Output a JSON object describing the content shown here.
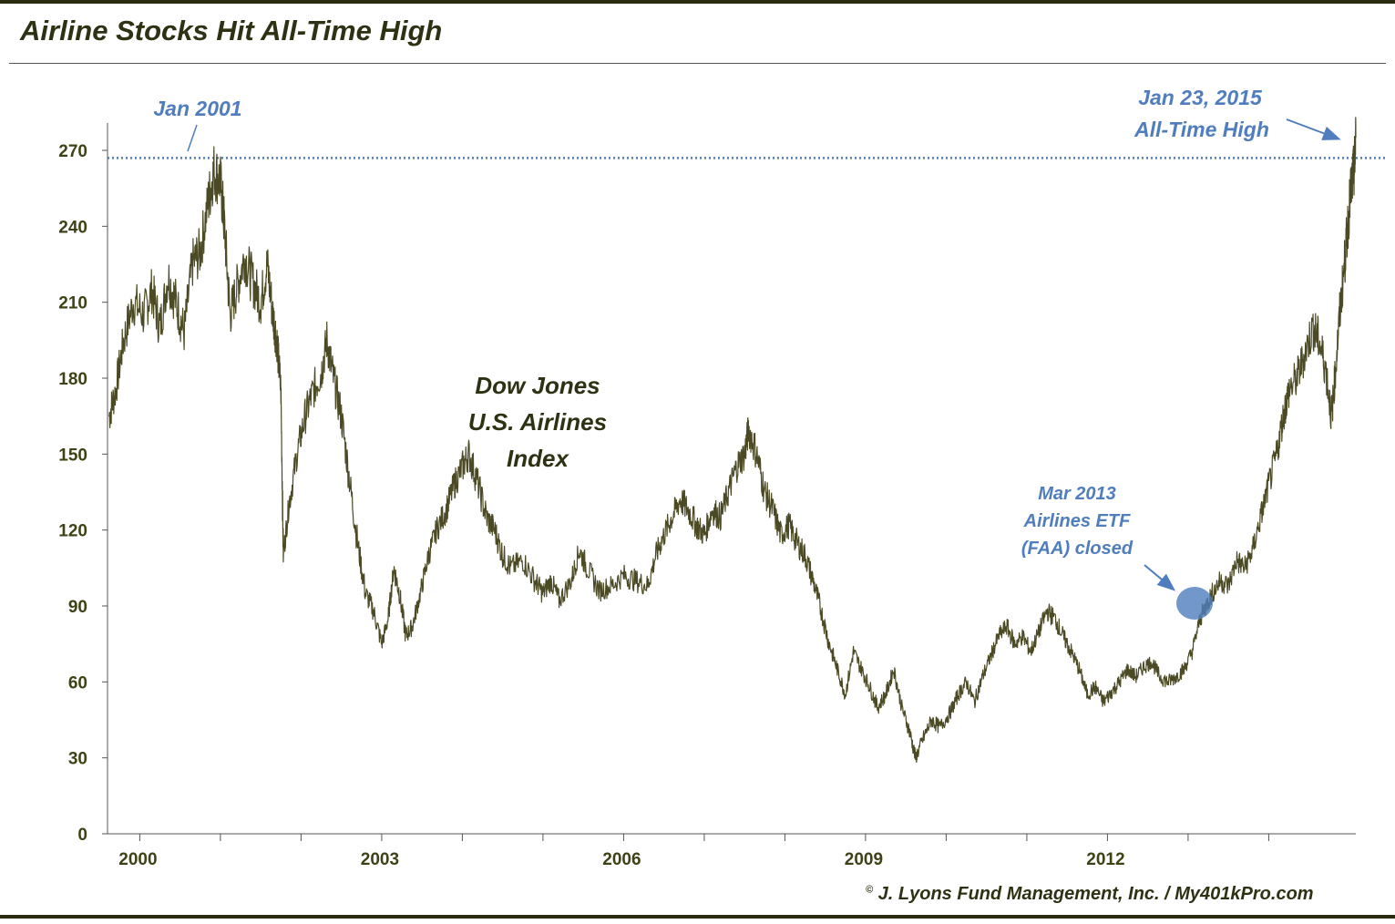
{
  "title": "Airline Stocks Hit All-Time High",
  "footer": "J. Lyons Fund Management, Inc. / My401kPro.com",
  "footer_symbol": "©",
  "chart_data": {
    "type": "line",
    "series_label": [
      "Dow Jones",
      "U.S. Airlines",
      "Index"
    ],
    "x_range": [
      1999.6,
      2015.08
    ],
    "ylim": [
      0,
      280
    ],
    "y_ticks": [
      0,
      30,
      60,
      90,
      120,
      150,
      180,
      210,
      240,
      270
    ],
    "x_ticks": [
      {
        "x": 2000,
        "label": "2000"
      },
      {
        "x": 2003,
        "label": "2003"
      },
      {
        "x": 2006,
        "label": "2006"
      },
      {
        "x": 2009,
        "label": "2009"
      },
      {
        "x": 2012,
        "label": "2012"
      }
    ],
    "x_minor_ticks": [
      2001,
      2002,
      2004,
      2005,
      2007,
      2008,
      2010,
      2011,
      2013,
      2014
    ],
    "reference_line": {
      "y": 267,
      "style": "dotted",
      "color": "#4f7dbd"
    },
    "series": [
      {
        "color": "#4b4a24",
        "points": [
          [
            1999.62,
            165
          ],
          [
            1999.7,
            175
          ],
          [
            1999.8,
            195
          ],
          [
            1999.92,
            210
          ],
          [
            2000.05,
            205
          ],
          [
            2000.15,
            215
          ],
          [
            2000.25,
            200
          ],
          [
            2000.35,
            220
          ],
          [
            2000.45,
            210
          ],
          [
            2000.55,
            198
          ],
          [
            2000.65,
            225
          ],
          [
            2000.75,
            230
          ],
          [
            2000.85,
            250
          ],
          [
            2000.92,
            262
          ],
          [
            2001.0,
            258
          ],
          [
            2001.05,
            240
          ],
          [
            2001.12,
            205
          ],
          [
            2001.2,
            215
          ],
          [
            2001.3,
            228
          ],
          [
            2001.4,
            218
          ],
          [
            2001.5,
            210
          ],
          [
            2001.58,
            225
          ],
          [
            2001.65,
            205
          ],
          [
            2001.7,
            195
          ],
          [
            2001.75,
            175
          ],
          [
            2001.78,
            110
          ],
          [
            2001.85,
            130
          ],
          [
            2001.95,
            150
          ],
          [
            2002.05,
            165
          ],
          [
            2002.15,
            175
          ],
          [
            2002.25,
            182
          ],
          [
            2002.32,
            195
          ],
          [
            2002.4,
            180
          ],
          [
            2002.5,
            165
          ],
          [
            2002.6,
            140
          ],
          [
            2002.7,
            115
          ],
          [
            2002.8,
            95
          ],
          [
            2002.9,
            88
          ],
          [
            2003.0,
            75
          ],
          [
            2003.08,
            85
          ],
          [
            2003.15,
            105
          ],
          [
            2003.22,
            95
          ],
          [
            2003.3,
            78
          ],
          [
            2003.38,
            82
          ],
          [
            2003.48,
            95
          ],
          [
            2003.58,
            110
          ],
          [
            2003.68,
            120
          ],
          [
            2003.8,
            128
          ],
          [
            2003.9,
            138
          ],
          [
            2004.0,
            145
          ],
          [
            2004.08,
            150
          ],
          [
            2004.18,
            140
          ],
          [
            2004.3,
            125
          ],
          [
            2004.4,
            120
          ],
          [
            2004.5,
            110
          ],
          [
            2004.6,
            105
          ],
          [
            2004.75,
            108
          ],
          [
            2004.9,
            100
          ],
          [
            2005.0,
            95
          ],
          [
            2005.1,
            100
          ],
          [
            2005.2,
            92
          ],
          [
            2005.35,
            100
          ],
          [
            2005.45,
            112
          ],
          [
            2005.55,
            105
          ],
          [
            2005.7,
            96
          ],
          [
            2005.85,
            98
          ],
          [
            2006.0,
            102
          ],
          [
            2006.15,
            100
          ],
          [
            2006.3,
            98
          ],
          [
            2006.4,
            110
          ],
          [
            2006.5,
            118
          ],
          [
            2006.6,
            125
          ],
          [
            2006.7,
            132
          ],
          [
            2006.8,
            128
          ],
          [
            2006.9,
            122
          ],
          [
            2007.0,
            118
          ],
          [
            2007.1,
            128
          ],
          [
            2007.2,
            125
          ],
          [
            2007.3,
            135
          ],
          [
            2007.4,
            145
          ],
          [
            2007.5,
            150
          ],
          [
            2007.55,
            160
          ],
          [
            2007.65,
            150
          ],
          [
            2007.75,
            135
          ],
          [
            2007.85,
            128
          ],
          [
            2007.95,
            118
          ],
          [
            2008.05,
            122
          ],
          [
            2008.15,
            115
          ],
          [
            2008.25,
            110
          ],
          [
            2008.35,
            100
          ],
          [
            2008.45,
            88
          ],
          [
            2008.55,
            75
          ],
          [
            2008.65,
            65
          ],
          [
            2008.75,
            55
          ],
          [
            2008.85,
            72
          ],
          [
            2008.95,
            65
          ],
          [
            2009.05,
            58
          ],
          [
            2009.15,
            50
          ],
          [
            2009.25,
            55
          ],
          [
            2009.35,
            65
          ],
          [
            2009.45,
            50
          ],
          [
            2009.55,
            40
          ],
          [
            2009.62,
            30
          ],
          [
            2009.72,
            38
          ],
          [
            2009.82,
            45
          ],
          [
            2009.92,
            42
          ],
          [
            2010.05,
            48
          ],
          [
            2010.15,
            55
          ],
          [
            2010.25,
            60
          ],
          [
            2010.35,
            52
          ],
          [
            2010.45,
            62
          ],
          [
            2010.55,
            70
          ],
          [
            2010.65,
            78
          ],
          [
            2010.75,
            82
          ],
          [
            2010.85,
            75
          ],
          [
            2010.95,
            78
          ],
          [
            2011.05,
            72
          ],
          [
            2011.15,
            80
          ],
          [
            2011.25,
            88
          ],
          [
            2011.35,
            85
          ],
          [
            2011.45,
            78
          ],
          [
            2011.55,
            72
          ],
          [
            2011.65,
            65
          ],
          [
            2011.75,
            55
          ],
          [
            2011.85,
            58
          ],
          [
            2011.95,
            52
          ],
          [
            2012.05,
            56
          ],
          [
            2012.15,
            60
          ],
          [
            2012.25,
            65
          ],
          [
            2012.35,
            62
          ],
          [
            2012.45,
            66
          ],
          [
            2012.55,
            68
          ],
          [
            2012.65,
            62
          ],
          [
            2012.75,
            60
          ],
          [
            2012.85,
            62
          ],
          [
            2012.95,
            65
          ],
          [
            2013.05,
            72
          ],
          [
            2013.15,
            85
          ],
          [
            2013.22,
            90
          ],
          [
            2013.3,
            95
          ],
          [
            2013.4,
            100
          ],
          [
            2013.5,
            98
          ],
          [
            2013.6,
            108
          ],
          [
            2013.7,
            105
          ],
          [
            2013.8,
            112
          ],
          [
            2013.9,
            125
          ],
          [
            2014.0,
            138
          ],
          [
            2014.1,
            150
          ],
          [
            2014.18,
            165
          ],
          [
            2014.25,
            175
          ],
          [
            2014.35,
            180
          ],
          [
            2014.45,
            190
          ],
          [
            2014.55,
            200
          ],
          [
            2014.62,
            195
          ],
          [
            2014.7,
            185
          ],
          [
            2014.78,
            165
          ],
          [
            2014.82,
            180
          ],
          [
            2014.88,
            205
          ],
          [
            2014.94,
            225
          ],
          [
            2014.98,
            240
          ],
          [
            2015.02,
            255
          ],
          [
            2015.06,
            262
          ],
          [
            2015.08,
            275
          ]
        ]
      }
    ]
  },
  "annotations": [
    {
      "lines": [
        "Jan 2001"
      ],
      "at": [
        2000.95,
        267
      ]
    },
    {
      "lines": [
        "Jan 23, 2015",
        "All-Time High"
      ],
      "at": [
        2015.08,
        275
      ]
    },
    {
      "lines": [
        "Mar 2013",
        "Airlines ETF",
        "(FAA) closed"
      ],
      "at": [
        2013.2,
        91
      ]
    }
  ]
}
